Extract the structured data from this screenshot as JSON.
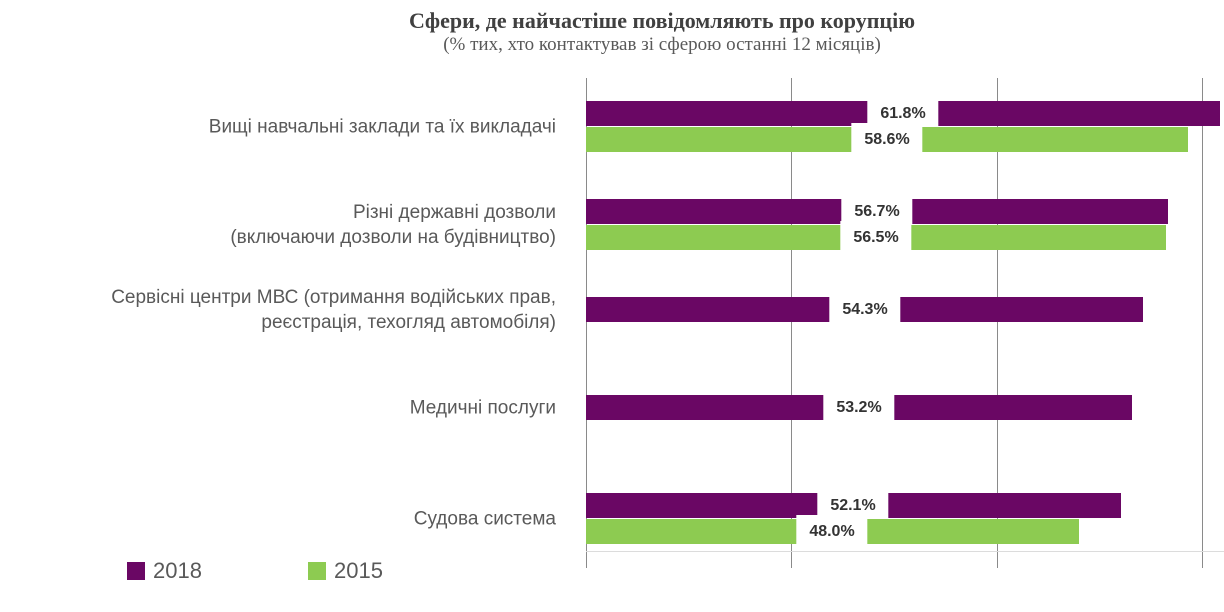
{
  "title": "Сфери, де найчастіше повідомляють про корупцію",
  "subtitle": "(% тих, хто контактував зі сферою останні 12 місяців)",
  "chart_data": {
    "type": "bar",
    "orientation": "horizontal",
    "title": "Сфери, де найчастіше повідомляють про корупцію",
    "subtitle": "(% тих, хто контактував зі сферою останні 12 місяців)",
    "categories": [
      {
        "lines": [
          "Вищі навчальні заклади та їх викладачі"
        ]
      },
      {
        "lines": [
          "Різні державні дозволи",
          "(включаючи дозволи на будівництво)"
        ]
      },
      {
        "lines": [
          "Сервісні центри МВС (отримання водійських прав,",
          "реєстрація, техогляд автомобіля)"
        ]
      },
      {
        "lines": [
          "Медичні послуги"
        ]
      },
      {
        "lines": [
          "Судова система"
        ]
      }
    ],
    "series": [
      {
        "name": "2018",
        "color": "#6A0764",
        "values": [
          61.8,
          56.7,
          54.3,
          53.2,
          52.1
        ]
      },
      {
        "name": "2015",
        "color": "#8DCB51",
        "values": [
          58.6,
          56.5,
          null,
          null,
          48.0
        ]
      }
    ],
    "value_labels": [
      [
        "61.8%",
        "56.7%",
        "54.3%",
        "53.2%",
        "52.1%"
      ],
      [
        "58.6%",
        "56.5%",
        null,
        null,
        "48.0%"
      ]
    ],
    "xlim": [
      0,
      62.1
    ],
    "gridline_values": [
      0,
      20,
      40,
      60
    ],
    "grid": true,
    "legend_position": "bottom-left",
    "colors": {
      "series_2018": "#6A0764",
      "series_2015": "#8DCB51",
      "gridline": "#8A8A8A",
      "title_text": "#404040",
      "label_text": "#595959",
      "value_text": "#333333"
    }
  }
}
